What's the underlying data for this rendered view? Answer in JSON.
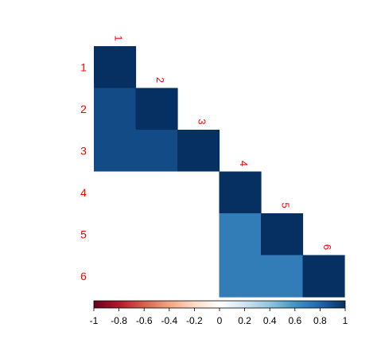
{
  "chart_data": {
    "type": "heatmap",
    "layout": "lower-triangle correlation matrix",
    "variables": [
      "1",
      "2",
      "3",
      "4",
      "5",
      "6"
    ],
    "matrix": [
      [
        1.0,
        null,
        null,
        null,
        null,
        null
      ],
      [
        0.9,
        1.0,
        null,
        null,
        null,
        null
      ],
      [
        0.9,
        0.9,
        1.0,
        null,
        null,
        null
      ],
      [
        0.0,
        0.0,
        0.0,
        1.0,
        null,
        null
      ],
      [
        0.0,
        0.0,
        0.0,
        0.7,
        1.0,
        null
      ],
      [
        0.0,
        0.0,
        0.0,
        0.7,
        0.7,
        1.0
      ]
    ],
    "label_color": "#ff0000",
    "colorbar": {
      "min": -1,
      "max": 1,
      "ticks": [
        "-1",
        "-0.8",
        "-0.6",
        "-0.4",
        "-0.2",
        "0",
        "0.2",
        "0.4",
        "0.6",
        "0.8",
        "1"
      ],
      "colors": [
        "#67001f",
        "#b2182b",
        "#d6604d",
        "#f4a582",
        "#fddbc7",
        "#ffffff",
        "#d1e5f0",
        "#92c5de",
        "#4393c3",
        "#2166ac",
        "#053061"
      ]
    },
    "title": "",
    "xlabel": "",
    "ylabel": ""
  }
}
